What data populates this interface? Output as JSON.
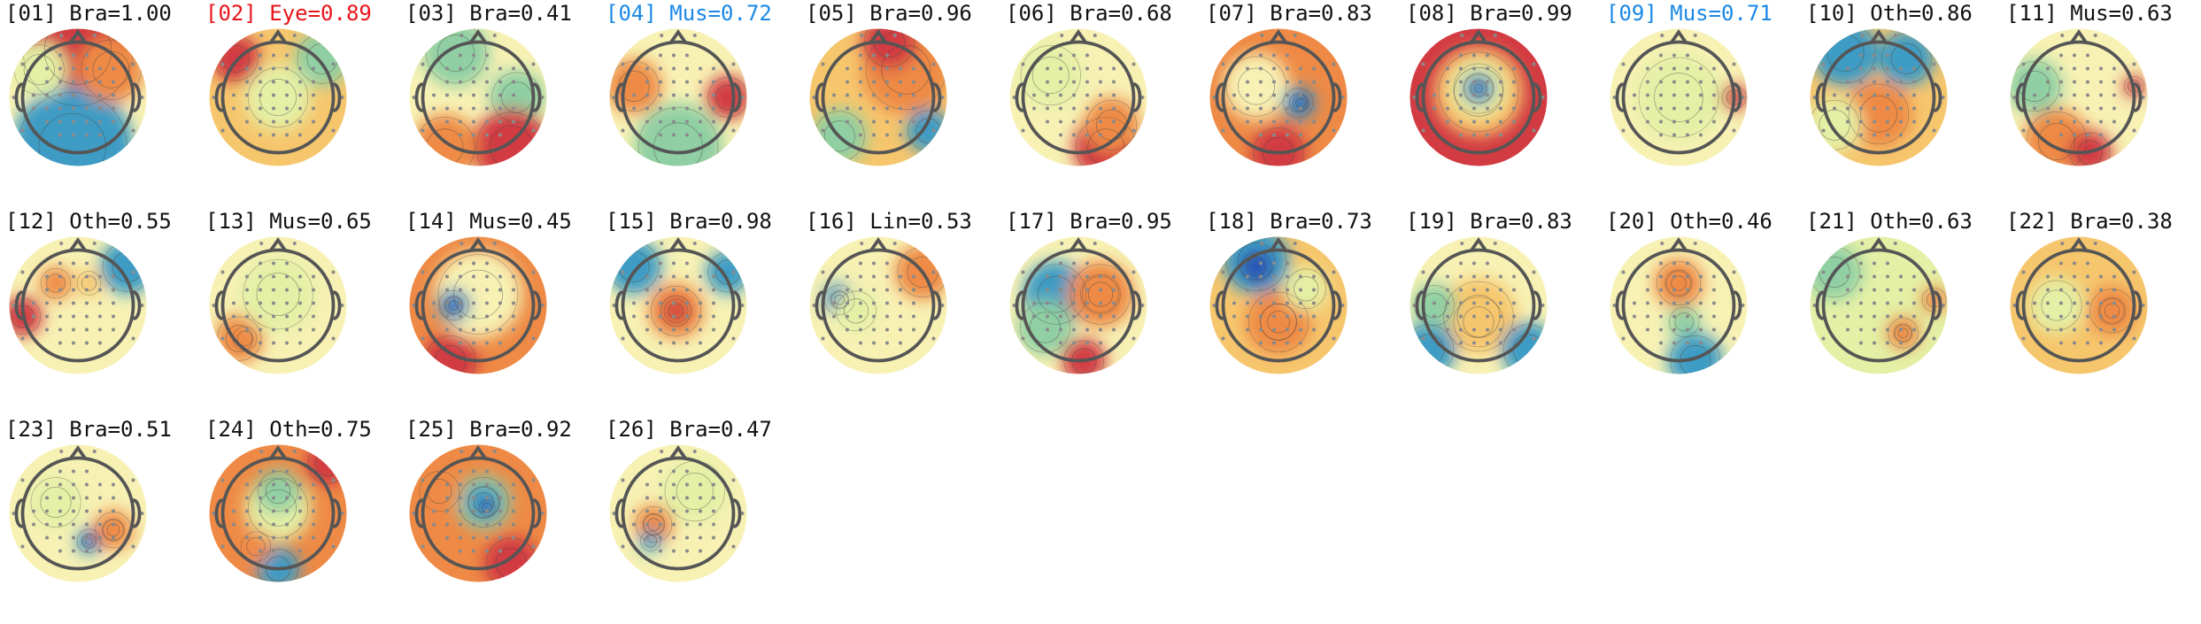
{
  "title_colors": {
    "default": "#111111",
    "eye": "#e8151b",
    "muscle": "#1a88e6"
  },
  "colormap": [
    "#2a4fb5",
    "#3d9bc4",
    "#8fcfa3",
    "#e4f0a6",
    "#f7f1b4",
    "#f6c66d",
    "#ee8a45",
    "#d23b42"
  ],
  "components": [
    {
      "label": "[01] Bra=1.00",
      "category": "default",
      "head_icon": "scalp-map-icon"
    },
    {
      "label": "[02] Eye=0.89",
      "category": "eye",
      "head_icon": "scalp-map-icon"
    },
    {
      "label": "[03] Bra=0.41",
      "category": "default",
      "head_icon": "scalp-map-icon"
    },
    {
      "label": "[04] Mus=0.72",
      "category": "muscle",
      "head_icon": "scalp-map-icon"
    },
    {
      "label": "[05] Bra=0.96",
      "category": "default",
      "head_icon": "scalp-map-icon"
    },
    {
      "label": "[06] Bra=0.68",
      "category": "default",
      "head_icon": "scalp-map-icon"
    },
    {
      "label": "[07] Bra=0.83",
      "category": "default",
      "head_icon": "scalp-map-icon"
    },
    {
      "label": "[08] Bra=0.99",
      "category": "default",
      "head_icon": "scalp-map-icon"
    },
    {
      "label": "[09] Mus=0.71",
      "category": "muscle",
      "head_icon": "scalp-map-icon"
    },
    {
      "label": "[10] Oth=0.86",
      "category": "default",
      "head_icon": "scalp-map-icon"
    },
    {
      "label": "[11] Mus=0.63",
      "category": "default",
      "head_icon": "scalp-map-icon"
    },
    {
      "label": "[12] Oth=0.55",
      "category": "default",
      "head_icon": "scalp-map-icon"
    },
    {
      "label": "[13] Mus=0.65",
      "category": "default",
      "head_icon": "scalp-map-icon"
    },
    {
      "label": "[14] Mus=0.45",
      "category": "default",
      "head_icon": "scalp-map-icon"
    },
    {
      "label": "[15] Bra=0.98",
      "category": "default",
      "head_icon": "scalp-map-icon"
    },
    {
      "label": "[16] Lin=0.53",
      "category": "default",
      "head_icon": "scalp-map-icon"
    },
    {
      "label": "[17] Bra=0.95",
      "category": "default",
      "head_icon": "scalp-map-icon"
    },
    {
      "label": "[18] Bra=0.73",
      "category": "default",
      "head_icon": "scalp-map-icon"
    },
    {
      "label": "[19] Bra=0.83",
      "category": "default",
      "head_icon": "scalp-map-icon"
    },
    {
      "label": "[20] Oth=0.46",
      "category": "default",
      "head_icon": "scalp-map-icon"
    },
    {
      "label": "[21] Oth=0.63",
      "category": "default",
      "head_icon": "scalp-map-icon"
    },
    {
      "label": "[22] Bra=0.38",
      "category": "default",
      "head_icon": "scalp-map-icon"
    },
    {
      "label": "[23] Bra=0.51",
      "category": "default",
      "head_icon": "scalp-map-icon"
    },
    {
      "label": "[24] Oth=0.75",
      "category": "default",
      "head_icon": "scalp-map-icon"
    },
    {
      "label": "[25] Bra=0.92",
      "category": "default",
      "head_icon": "scalp-map-icon"
    },
    {
      "label": "[26] Bra=0.47",
      "category": "default",
      "head_icon": "scalp-map-icon"
    }
  ]
}
